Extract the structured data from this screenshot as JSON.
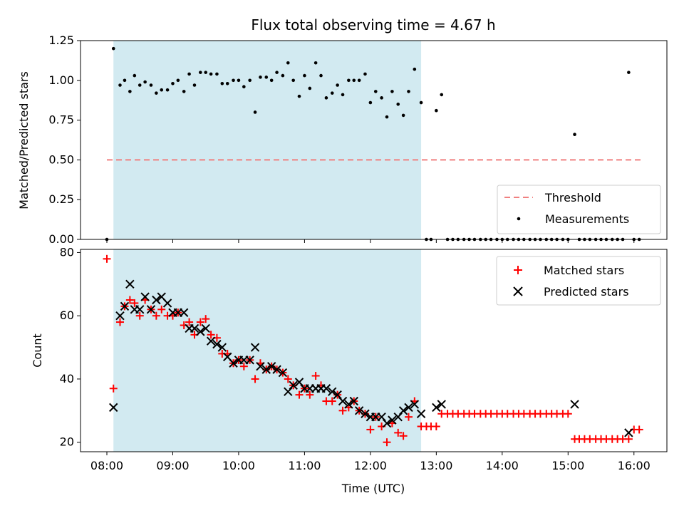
{
  "chart_data": [
    {
      "type": "scatter",
      "title": "Flux total observing time = 4.67 h",
      "xlabel": "",
      "ylabel": "Matched/Predicted stars",
      "xlim": [
        7.6,
        16.5
      ],
      "ylim": [
        0,
        1.25
      ],
      "yticks": [
        "0.00",
        "0.25",
        "0.50",
        "0.75",
        "1.00",
        "1.25"
      ],
      "shaded_interval": [
        8.1,
        12.77
      ],
      "threshold": {
        "name": "Threshold",
        "value": 0.5,
        "x": [
          8.0,
          16.1
        ],
        "color": "#f08080"
      },
      "legend_location": "lower right",
      "series": [
        {
          "name": "Measurements",
          "color": "#000000",
          "x": [
            8.0,
            8.1,
            8.2,
            8.27,
            8.35,
            8.42,
            8.5,
            8.58,
            8.67,
            8.75,
            8.83,
            8.92,
            9.0,
            9.08,
            9.17,
            9.25,
            9.33,
            9.42,
            9.5,
            9.58,
            9.67,
            9.75,
            9.83,
            9.92,
            10.0,
            10.08,
            10.17,
            10.25,
            10.33,
            10.42,
            10.5,
            10.58,
            10.67,
            10.75,
            10.83,
            10.92,
            11.0,
            11.08,
            11.17,
            11.25,
            11.33,
            11.42,
            11.5,
            11.58,
            11.67,
            11.75,
            11.83,
            11.92,
            12.0,
            12.08,
            12.17,
            12.25,
            12.33,
            12.42,
            12.5,
            12.58,
            12.67,
            12.77,
            12.85,
            12.92,
            13.0,
            13.08,
            13.17,
            13.25,
            13.33,
            13.42,
            13.5,
            13.58,
            13.67,
            13.75,
            13.83,
            13.92,
            14.0,
            14.08,
            14.17,
            14.25,
            14.33,
            14.42,
            14.5,
            14.58,
            14.67,
            14.75,
            14.83,
            14.92,
            15.0,
            15.1,
            15.17,
            15.25,
            15.33,
            15.42,
            15.5,
            15.58,
            15.67,
            15.75,
            15.83,
            15.92,
            16.0,
            16.08
          ],
          "y": [
            0.0,
            1.2,
            0.97,
            1.0,
            0.93,
            1.03,
            0.97,
            0.99,
            0.97,
            0.92,
            0.94,
            0.94,
            0.98,
            1.0,
            0.93,
            1.04,
            0.97,
            1.05,
            1.05,
            1.04,
            1.04,
            0.98,
            0.98,
            1.0,
            1.0,
            0.96,
            1.0,
            0.8,
            1.02,
            1.02,
            1.0,
            1.05,
            1.03,
            1.11,
            1.0,
            0.9,
            1.03,
            0.95,
            1.11,
            1.03,
            0.89,
            0.92,
            0.97,
            0.91,
            1.0,
            1.0,
            1.0,
            1.04,
            0.86,
            0.93,
            0.89,
            0.77,
            0.93,
            0.85,
            0.78,
            0.93,
            1.07,
            0.86,
            0.0,
            0.0,
            0.81,
            0.91,
            0.0,
            0.0,
            0.0,
            0.0,
            0.0,
            0.0,
            0.0,
            0.0,
            0.0,
            0.0,
            0.0,
            0.0,
            0.0,
            0.0,
            0.0,
            0.0,
            0.0,
            0.0,
            0.0,
            0.0,
            0.0,
            0.0,
            0.0,
            0.66,
            0.0,
            0.0,
            0.0,
            0.0,
            0.0,
            0.0,
            0.0,
            0.0,
            0.0,
            1.05,
            0.0,
            0.0
          ]
        }
      ]
    },
    {
      "type": "scatter",
      "title": "",
      "xlabel": "Time (UTC)",
      "ylabel": "Count",
      "xlim": [
        7.6,
        16.5
      ],
      "ylim": [
        17,
        81
      ],
      "yticks": [
        "20",
        "40",
        "60",
        "80"
      ],
      "xticks": [
        "08:00",
        "09:00",
        "10:00",
        "11:00",
        "12:00",
        "13:00",
        "14:00",
        "15:00",
        "16:00"
      ],
      "shaded_interval": [
        8.1,
        12.77
      ],
      "legend_location": "upper right",
      "series": [
        {
          "name": "Matched stars",
          "color": "#ff0000",
          "marker": "plus",
          "x": [
            8.0,
            8.1,
            8.2,
            8.27,
            8.35,
            8.42,
            8.5,
            8.58,
            8.67,
            8.75,
            8.83,
            8.92,
            9.0,
            9.08,
            9.17,
            9.25,
            9.33,
            9.42,
            9.5,
            9.58,
            9.67,
            9.75,
            9.83,
            9.92,
            10.0,
            10.08,
            10.17,
            10.25,
            10.33,
            10.42,
            10.5,
            10.58,
            10.67,
            10.75,
            10.83,
            10.92,
            11.0,
            11.08,
            11.17,
            11.25,
            11.33,
            11.42,
            11.5,
            11.58,
            11.67,
            11.75,
            11.83,
            11.92,
            12.0,
            12.08,
            12.17,
            12.25,
            12.33,
            12.42,
            12.5,
            12.58,
            12.67,
            12.77,
            12.85,
            12.92,
            13.0,
            13.08,
            13.17,
            13.25,
            13.33,
            13.42,
            13.5,
            13.58,
            13.67,
            13.75,
            13.83,
            13.92,
            14.0,
            14.08,
            14.17,
            14.25,
            14.33,
            14.42,
            14.5,
            14.58,
            14.67,
            14.75,
            14.83,
            14.92,
            15.0,
            15.1,
            15.17,
            15.25,
            15.33,
            15.42,
            15.5,
            15.58,
            15.67,
            15.75,
            15.83,
            15.92,
            16.0,
            16.08
          ],
          "y": [
            78,
            37,
            58,
            63,
            65,
            64,
            60,
            65,
            62,
            60,
            62,
            60,
            60,
            61,
            57,
            58,
            54,
            58,
            59,
            54,
            53,
            48,
            48,
            45,
            46,
            44,
            46,
            40,
            45,
            43,
            44,
            43,
            42,
            40,
            38,
            35,
            37,
            35,
            41,
            38,
            33,
            33,
            35,
            30,
            31,
            33,
            30,
            29,
            24,
            28,
            25,
            20,
            26,
            23,
            22,
            28,
            33,
            25,
            25,
            25,
            25,
            29,
            29,
            29,
            29,
            29,
            29,
            29,
            29,
            29,
            29,
            29,
            29,
            29,
            29,
            29,
            29,
            29,
            29,
            29,
            29,
            29,
            29,
            29,
            29,
            21,
            21,
            21,
            21,
            21,
            21,
            21,
            21,
            21,
            21,
            21,
            24,
            24
          ]
        },
        {
          "name": "Predicted stars",
          "color": "#000000",
          "marker": "x",
          "x": [
            8.1,
            8.2,
            8.27,
            8.35,
            8.42,
            8.5,
            8.58,
            8.67,
            8.75,
            8.83,
            8.92,
            9.0,
            9.08,
            9.17,
            9.25,
            9.33,
            9.42,
            9.5,
            9.58,
            9.67,
            9.75,
            9.83,
            9.92,
            10.0,
            10.08,
            10.17,
            10.25,
            10.33,
            10.42,
            10.5,
            10.58,
            10.67,
            10.75,
            10.83,
            10.92,
            11.0,
            11.08,
            11.17,
            11.25,
            11.33,
            11.42,
            11.5,
            11.58,
            11.67,
            11.75,
            11.83,
            11.92,
            12.0,
            12.08,
            12.17,
            12.25,
            12.33,
            12.42,
            12.5,
            12.58,
            12.67,
            12.77,
            13.0,
            13.08,
            15.1,
            15.92
          ],
          "y": [
            31,
            60,
            63,
            70,
            62,
            62,
            66,
            62,
            65,
            66,
            64,
            61,
            61,
            61,
            56,
            56,
            55,
            56,
            52,
            51,
            50,
            47,
            45,
            46,
            46,
            46,
            50,
            44,
            43,
            44,
            43,
            42,
            36,
            38,
            39,
            37,
            37,
            37,
            37,
            37,
            36,
            35,
            33,
            32,
            33,
            30,
            29,
            28,
            28,
            28,
            26,
            27,
            28,
            30,
            31,
            32,
            29,
            31,
            32,
            32,
            23
          ]
        }
      ]
    }
  ]
}
